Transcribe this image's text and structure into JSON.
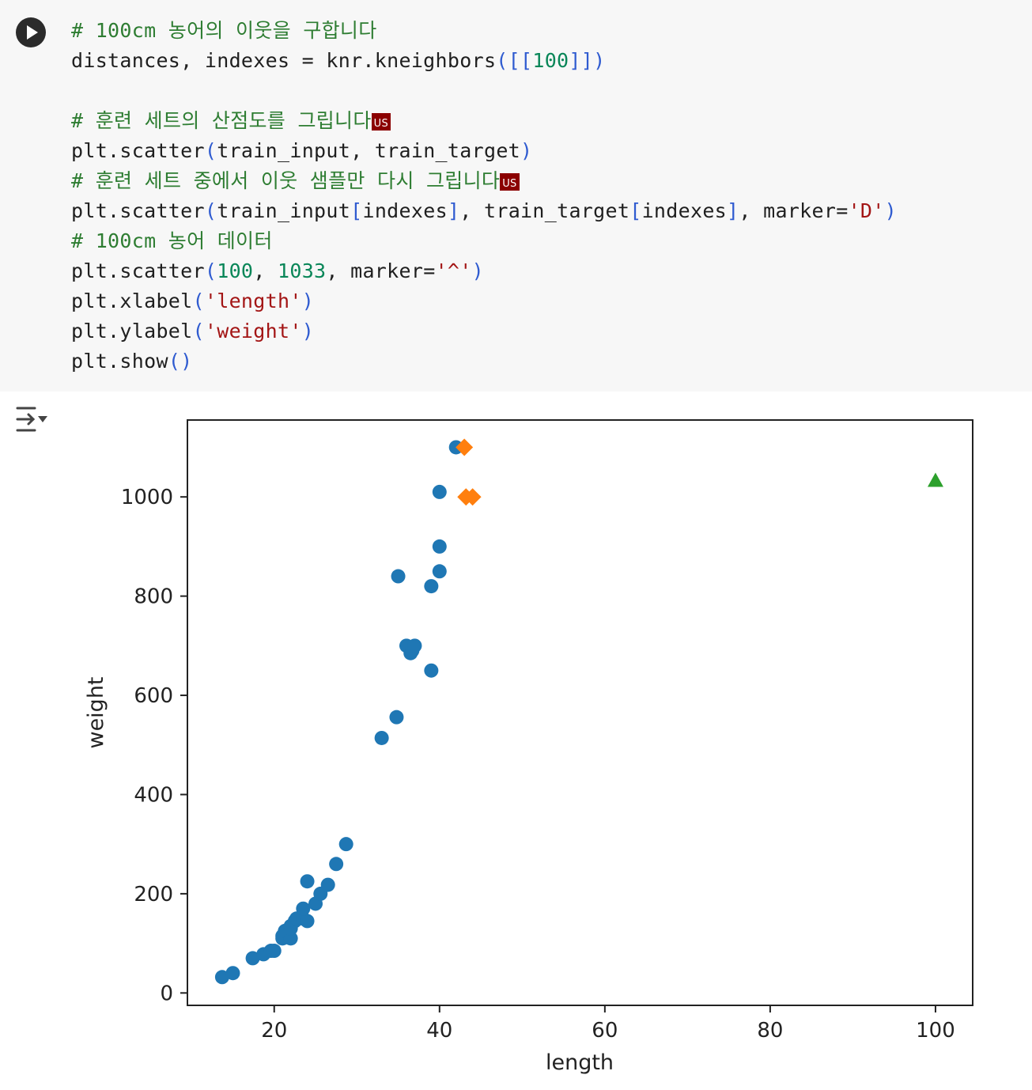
{
  "code": {
    "run_label": "",
    "lines": [
      [
        {
          "t": "# 100cm 농어의 이웃을 구합니다",
          "k": "c"
        }
      ],
      [
        {
          "t": "distances, indexes = knr.kneighbors",
          "k": ""
        },
        {
          "t": "([[",
          "k": "b"
        },
        {
          "t": "100",
          "k": "n"
        },
        {
          "t": "]])",
          "k": "b"
        }
      ],
      [],
      [
        {
          "t": "# 훈련 세트의 산점도를 그립니다",
          "k": "c"
        },
        {
          "t": "US",
          "k": "badge"
        }
      ],
      [
        {
          "t": "plt.scatter",
          "k": ""
        },
        {
          "t": "(",
          "k": "b"
        },
        {
          "t": "train_input, train_target",
          "k": ""
        },
        {
          "t": ")",
          "k": "b"
        }
      ],
      [
        {
          "t": "# 훈련 세트 중에서 이웃 샘플만 다시 그립니다",
          "k": "c"
        },
        {
          "t": "US",
          "k": "badge"
        }
      ],
      [
        {
          "t": "plt.scatter",
          "k": ""
        },
        {
          "t": "(",
          "k": "b"
        },
        {
          "t": "train_input",
          "k": ""
        },
        {
          "t": "[",
          "k": "b"
        },
        {
          "t": "indexes",
          "k": ""
        },
        {
          "t": "]",
          "k": "b"
        },
        {
          "t": ", train_target",
          "k": ""
        },
        {
          "t": "[",
          "k": "b"
        },
        {
          "t": "indexes",
          "k": ""
        },
        {
          "t": "]",
          "k": "b"
        },
        {
          "t": ", marker=",
          "k": ""
        },
        {
          "t": "'D'",
          "k": "s"
        },
        {
          "t": ")",
          "k": "b"
        }
      ],
      [
        {
          "t": "# 100cm 농어 데이터",
          "k": "c"
        }
      ],
      [
        {
          "t": "plt.scatter",
          "k": ""
        },
        {
          "t": "(",
          "k": "b"
        },
        {
          "t": "100",
          "k": "n"
        },
        {
          "t": ", ",
          "k": ""
        },
        {
          "t": "1033",
          "k": "n"
        },
        {
          "t": ", marker=",
          "k": ""
        },
        {
          "t": "'^'",
          "k": "s"
        },
        {
          "t": ")",
          "k": "b"
        }
      ],
      [
        {
          "t": "plt.xlabel",
          "k": ""
        },
        {
          "t": "(",
          "k": "b"
        },
        {
          "t": "'length'",
          "k": "s"
        },
        {
          "t": ")",
          "k": "b"
        }
      ],
      [
        {
          "t": "plt.ylabel",
          "k": ""
        },
        {
          "t": "(",
          "k": "b"
        },
        {
          "t": "'weight'",
          "k": "s"
        },
        {
          "t": ")",
          "k": "b"
        }
      ],
      [
        {
          "t": "plt.show",
          "k": ""
        },
        {
          "t": "()",
          "k": "b"
        }
      ]
    ]
  },
  "output_icon": "output-toggle-icon",
  "chart_data": {
    "type": "scatter",
    "xlabel": "length",
    "ylabel": "weight",
    "xlim": [
      9.5,
      104.5
    ],
    "ylim": [
      -25,
      1155
    ],
    "xticks": [
      20,
      40,
      60,
      80,
      100
    ],
    "yticks": [
      0,
      200,
      400,
      600,
      800,
      1000
    ],
    "series": [
      {
        "marker": "circle",
        "color": "#1f77b4",
        "points": [
          [
            13.7,
            32
          ],
          [
            15.0,
            40
          ],
          [
            17.4,
            70
          ],
          [
            18.7,
            78
          ],
          [
            19.6,
            85
          ],
          [
            20.0,
            85
          ],
          [
            21.0,
            110
          ],
          [
            21.0,
            115
          ],
          [
            21.3,
            125
          ],
          [
            22.0,
            110
          ],
          [
            22.0,
            130
          ],
          [
            22.0,
            135
          ],
          [
            22.5,
            145
          ],
          [
            22.7,
            150
          ],
          [
            23.5,
            150
          ],
          [
            24.0,
            145
          ],
          [
            23.5,
            170
          ],
          [
            24.0,
            225
          ],
          [
            25.0,
            180
          ],
          [
            25.6,
            200
          ],
          [
            26.5,
            218
          ],
          [
            27.5,
            260
          ],
          [
            28.7,
            300
          ],
          [
            33.0,
            514
          ],
          [
            34.8,
            556
          ],
          [
            35.0,
            840
          ],
          [
            36.0,
            700
          ],
          [
            36.5,
            685
          ],
          [
            36.7,
            690
          ],
          [
            37.0,
            700
          ],
          [
            39.0,
            650
          ],
          [
            39.0,
            820
          ],
          [
            40.0,
            1010
          ],
          [
            40.0,
            900
          ],
          [
            40.0,
            850
          ],
          [
            42.0,
            1100
          ]
        ]
      },
      {
        "marker": "diamond",
        "color": "#ff7f0e",
        "points": [
          [
            43.0,
            1100
          ],
          [
            43.2,
            1000
          ],
          [
            44.0,
            1000
          ]
        ]
      },
      {
        "marker": "triangle",
        "color": "#2ca02c",
        "points": [
          [
            100,
            1033
          ]
        ]
      }
    ]
  }
}
